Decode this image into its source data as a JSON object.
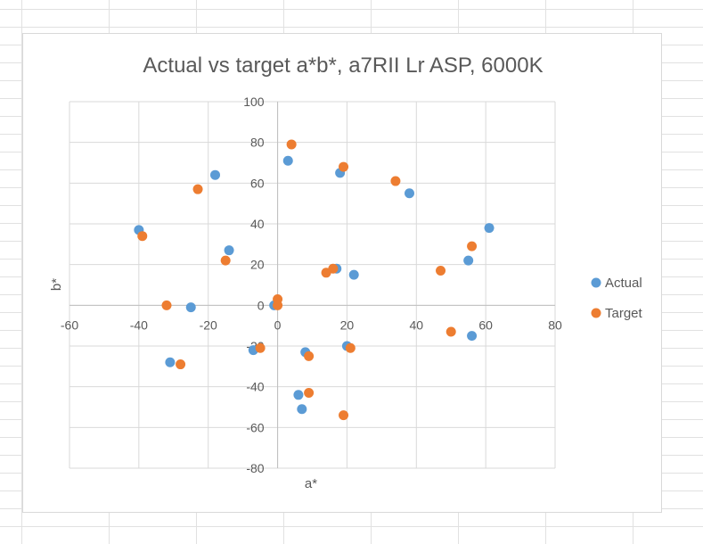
{
  "chart_data": {
    "type": "scatter",
    "title": "Actual vs target a*b*, a7RII Lr ASP, 6000K",
    "xlabel": "a*",
    "ylabel": "b*",
    "xlim": [
      -60,
      80
    ],
    "ylim": [
      -80,
      100
    ],
    "xticks": [
      "-60",
      "-40",
      "-20",
      "0",
      "20",
      "40",
      "60",
      "80"
    ],
    "yticks": [
      "-80",
      "-60",
      "-40",
      "-20",
      "0",
      "20",
      "40",
      "60",
      "80",
      "100"
    ],
    "grid": true,
    "legend_position": "right",
    "series": [
      {
        "name": "Actual",
        "color": "#5b9bd5",
        "points": [
          [
            -18,
            64
          ],
          [
            3,
            71
          ],
          [
            18,
            65
          ],
          [
            38,
            55
          ],
          [
            61,
            38
          ],
          [
            -40,
            37
          ],
          [
            -14,
            27
          ],
          [
            55,
            22
          ],
          [
            17,
            18
          ],
          [
            22,
            15
          ],
          [
            -25,
            -1
          ],
          [
            -1,
            0
          ],
          [
            56,
            -15
          ],
          [
            20,
            -20
          ],
          [
            -7,
            -22
          ],
          [
            8,
            -23
          ],
          [
            -31,
            -28
          ],
          [
            6,
            -44
          ],
          [
            7,
            -51
          ]
        ]
      },
      {
        "name": "Target",
        "color": "#ed7d31",
        "points": [
          [
            4,
            79
          ],
          [
            19,
            68
          ],
          [
            34,
            61
          ],
          [
            -23,
            57
          ],
          [
            -39,
            34
          ],
          [
            56,
            29
          ],
          [
            -15,
            22
          ],
          [
            47,
            17
          ],
          [
            16,
            18
          ],
          [
            14,
            16
          ],
          [
            0,
            3
          ],
          [
            0,
            0
          ],
          [
            -32,
            0
          ],
          [
            50,
            -13
          ],
          [
            -5,
            -21
          ],
          [
            21,
            -21
          ],
          [
            9,
            -25
          ],
          [
            -28,
            -29
          ],
          [
            9,
            -43
          ],
          [
            19,
            -54
          ]
        ]
      }
    ]
  }
}
